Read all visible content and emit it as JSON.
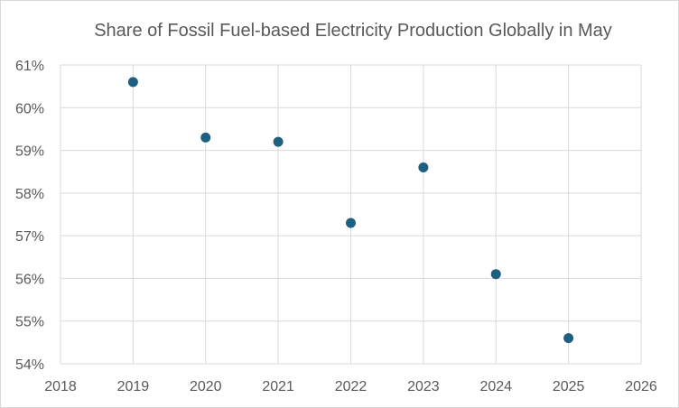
{
  "chart_data": {
    "type": "scatter",
    "title": "Share of Fossil Fuel-based Electricity Production Globally in May",
    "xlabel": "",
    "ylabel": "",
    "xlim": [
      2018,
      2026
    ],
    "ylim": [
      0.54,
      0.61
    ],
    "x_ticks": [
      "2018",
      "2019",
      "2020",
      "2021",
      "2022",
      "2023",
      "2024",
      "2025",
      "2026"
    ],
    "y_ticks": [
      "54%",
      "55%",
      "56%",
      "57%",
      "58%",
      "59%",
      "60%",
      "61%"
    ],
    "grid": true,
    "legend": "none",
    "marker_color": "#1f5f7f",
    "x": [
      2019,
      2020,
      2021,
      2022,
      2023,
      2024,
      2025
    ],
    "y": [
      0.606,
      0.593,
      0.592,
      0.573,
      0.586,
      0.561,
      0.546
    ]
  }
}
